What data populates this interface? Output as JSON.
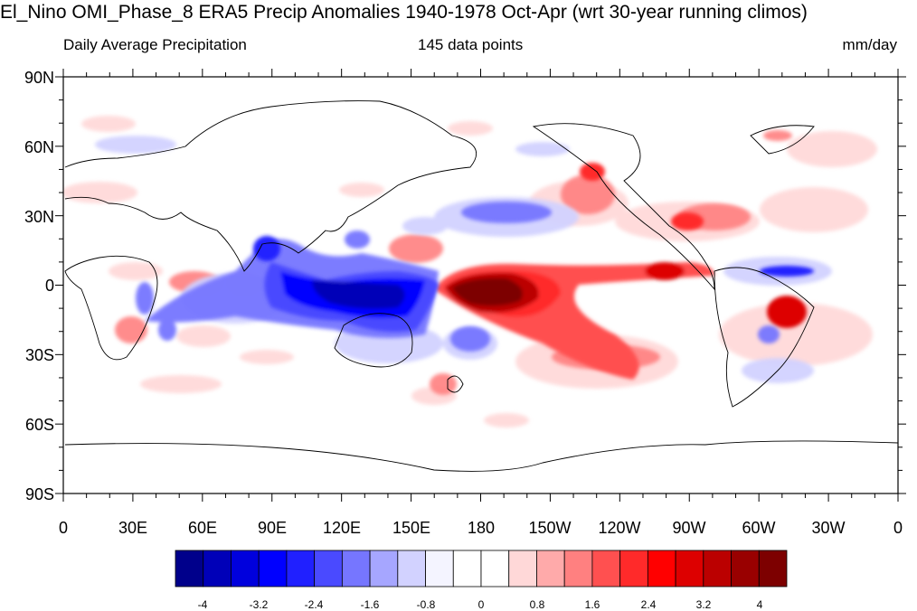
{
  "title": "El_Nino OMI_Phase_8 ERA5 Precip Anomalies 1940-1978 Oct-Apr (wrt 30-year running climos)",
  "subtitle_left": "Daily Average Precipitation",
  "subtitle_center": "145 data points",
  "subtitle_right": "mm/day",
  "map": {
    "projection": "cylindrical-equidistant",
    "lon_range": [
      0,
      360
    ],
    "lat_range": [
      -90,
      90
    ],
    "lat_labels": [
      "90N",
      "60N",
      "30N",
      "0",
      "30S",
      "60S",
      "90S"
    ],
    "lon_labels": [
      "0",
      "30E",
      "60E",
      "90E",
      "120E",
      "150E",
      "180",
      "150W",
      "120W",
      "90W",
      "60W",
      "30W",
      "0"
    ]
  },
  "colorbar": {
    "colors": [
      "#00008b",
      "#0000b8",
      "#0000dd",
      "#0000ff",
      "#2020ff",
      "#4a4aff",
      "#7676ff",
      "#a6a6ff",
      "#d2d2ff",
      "#f4f4ff",
      "#ffffff",
      "#ffffff",
      "#ffd8d8",
      "#ffaaaa",
      "#ff8080",
      "#ff5050",
      "#ff2a2a",
      "#ff0000",
      "#dd0000",
      "#bb0000",
      "#990000",
      "#7d0000"
    ],
    "labels": [
      "-4",
      "-3.2",
      "-2.4",
      "-1.6",
      "-0.8",
      "0",
      "0.8",
      "1.6",
      "2.4",
      "3.2",
      "4"
    ]
  }
}
